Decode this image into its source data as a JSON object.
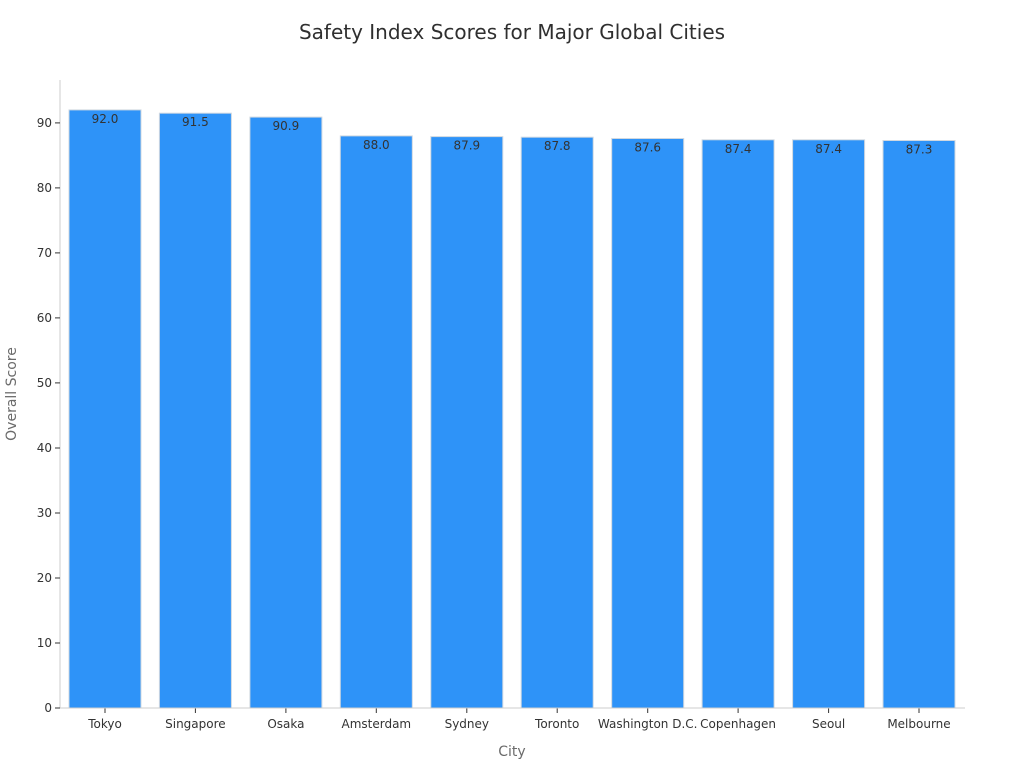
{
  "chart_data": {
    "type": "bar",
    "title": "Safety Index Scores for Major Global Cities",
    "xlabel": "City",
    "ylabel": "Overall Score",
    "categories": [
      "Tokyo",
      "Singapore",
      "Osaka",
      "Amsterdam",
      "Sydney",
      "Toronto",
      "Washington D.C.",
      "Copenhagen",
      "Seoul",
      "Melbourne"
    ],
    "values": [
      92.0,
      91.5,
      90.9,
      88.0,
      87.9,
      87.8,
      87.6,
      87.4,
      87.4,
      87.3
    ],
    "value_labels": [
      "92.0",
      "91.5",
      "90.9",
      "88.0",
      "87.9",
      "87.8",
      "87.6",
      "87.4",
      "87.4",
      "87.3"
    ],
    "yticks": [
      0,
      10,
      20,
      30,
      40,
      50,
      60,
      70,
      80,
      90
    ],
    "ylim": [
      0,
      96.6
    ],
    "grid": false,
    "legend": "none",
    "bar_color": "#2e93f8",
    "bar_edge_color": "#d0d8e0",
    "axis_color": "#cccccc"
  }
}
